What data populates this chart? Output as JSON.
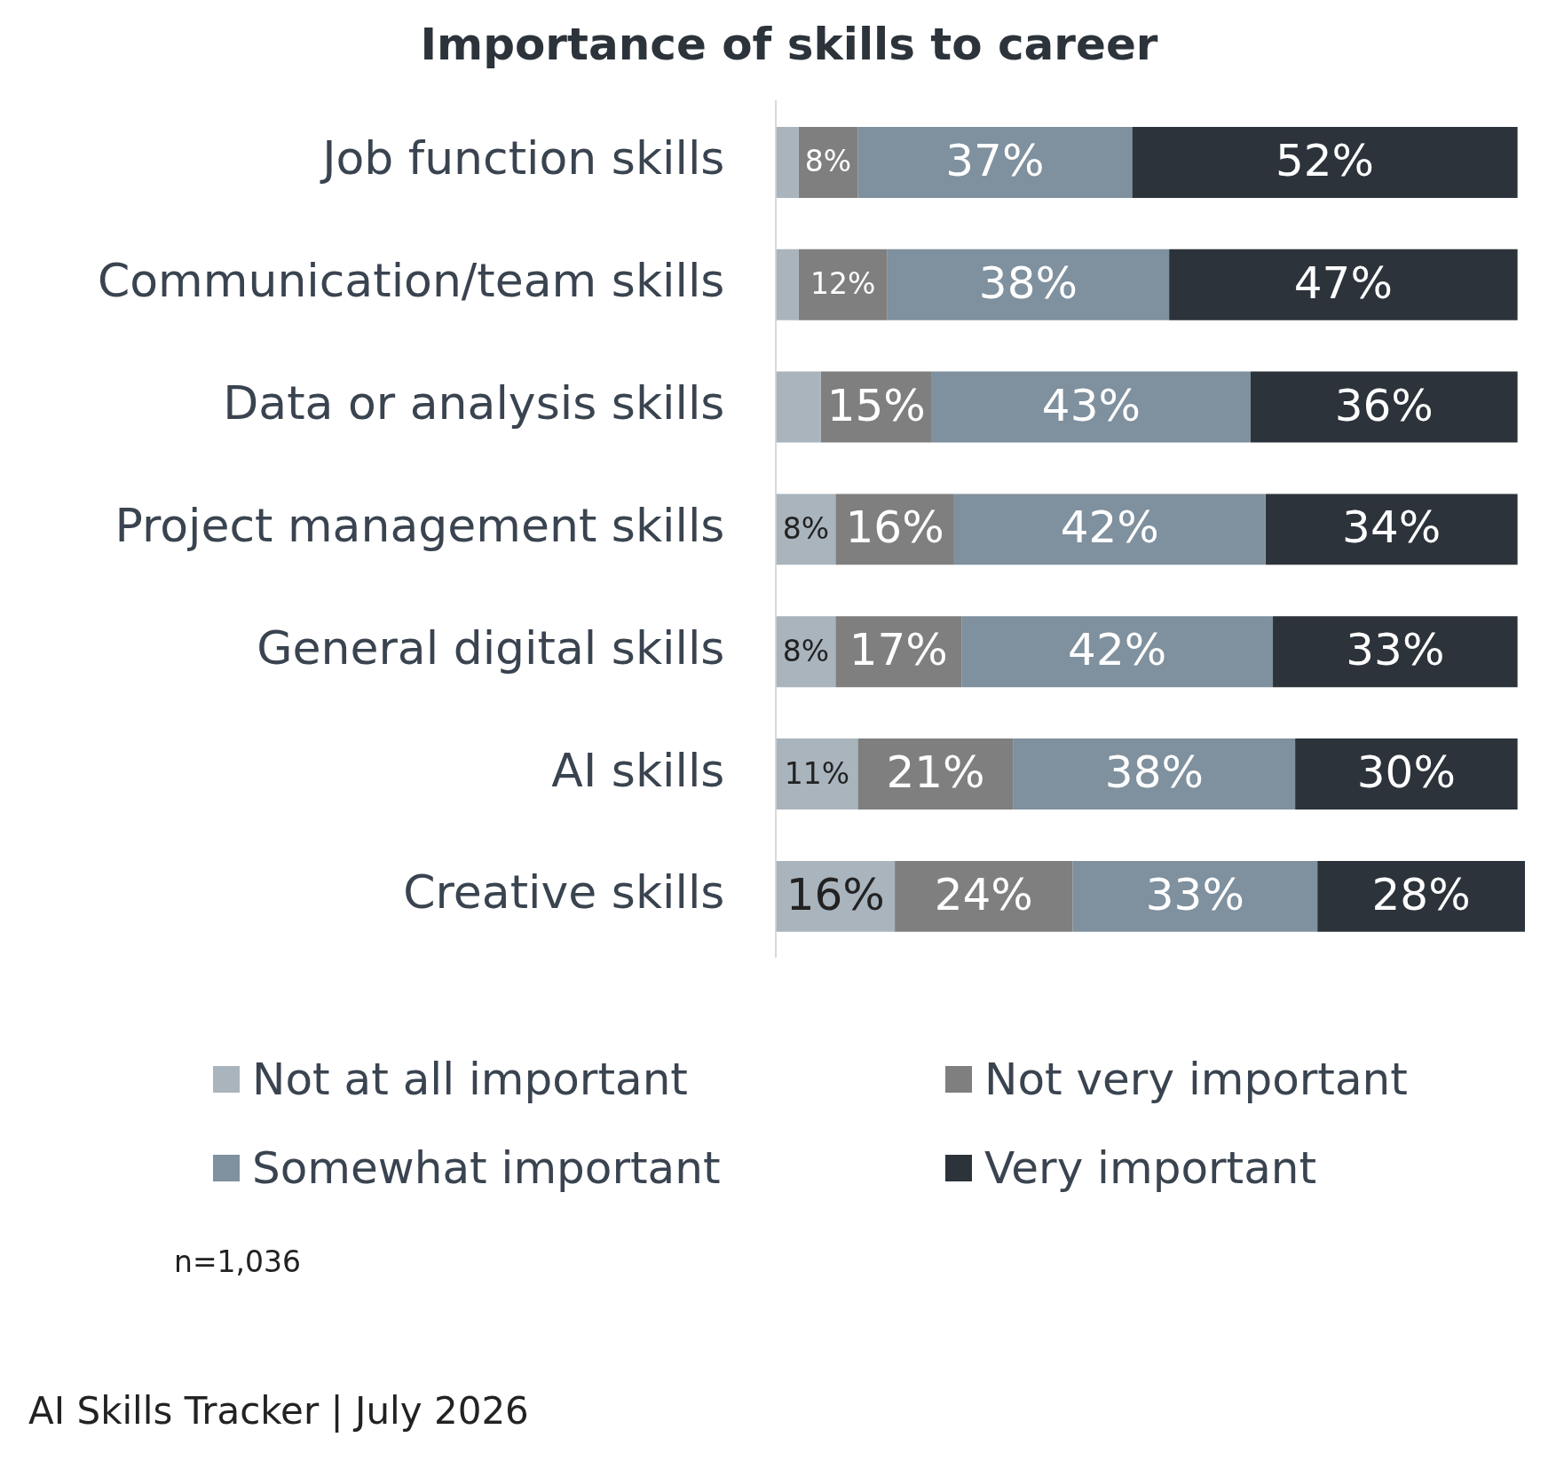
{
  "chart_data": {
    "type": "bar",
    "orientation": "horizontal",
    "stacked": true,
    "title": "Importance of skills to career",
    "categories": [
      "Job function skills",
      "Communication/team skills",
      "Data or analysis skills",
      "Project management skills",
      "General digital skills",
      "AI skills",
      "Creative skills"
    ],
    "series": [
      {
        "name": "Not at all important",
        "color": "#a9b4bd",
        "values": [
          3,
          3,
          6,
          8,
          8,
          11,
          16
        ],
        "value_labels": [
          null,
          null,
          null,
          "8%",
          "8%",
          "11%",
          "16%"
        ]
      },
      {
        "name": "Not very important",
        "color": "#7f7f7f",
        "values": [
          8,
          12,
          15,
          16,
          17,
          21,
          24
        ],
        "value_labels": [
          "8%",
          "12%",
          "15%",
          "16%",
          "17%",
          "21%",
          "24%"
        ]
      },
      {
        "name": "Somewhat important",
        "color": "#7f909e",
        "values": [
          37,
          38,
          43,
          42,
          42,
          38,
          33
        ],
        "value_labels": [
          "37%",
          "38%",
          "43%",
          "42%",
          "42%",
          "38%",
          "33%"
        ]
      },
      {
        "name": "Very important",
        "color": "#2c333a",
        "values": [
          52,
          47,
          36,
          34,
          33,
          30,
          28
        ],
        "value_labels": [
          "52%",
          "47%",
          "36%",
          "34%",
          "33%",
          "30%",
          "28%"
        ]
      }
    ],
    "xlim": [
      0,
      101
    ],
    "legend": "bottom",
    "tick_labels": "y",
    "annotations": [
      "n=1,036",
      "AI Skills Tracker | July 2026"
    ]
  }
}
